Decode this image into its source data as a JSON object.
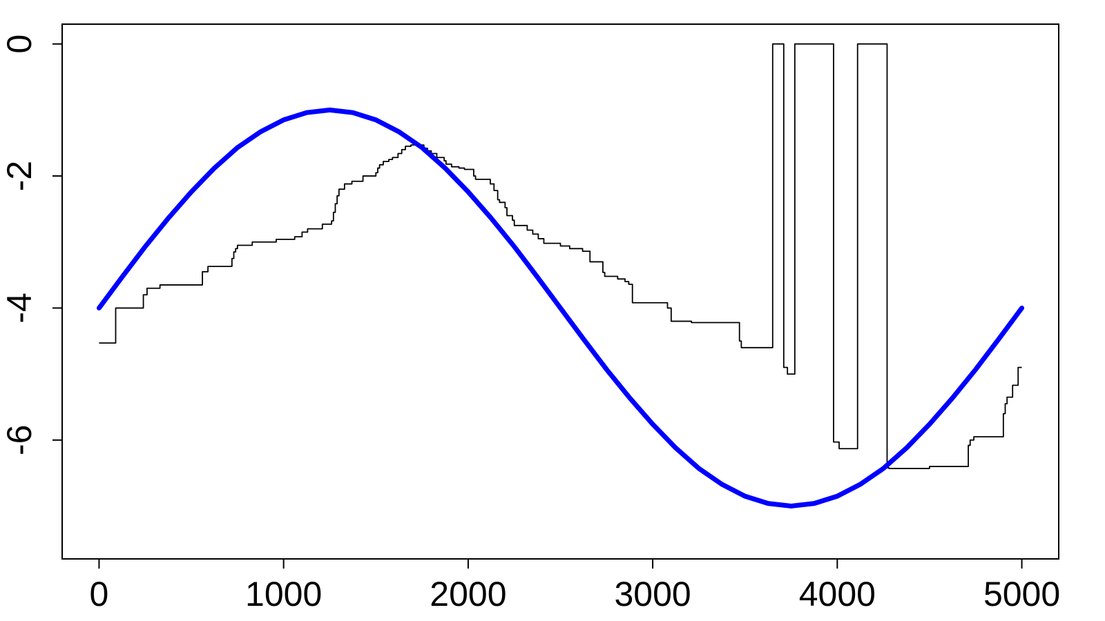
{
  "chart_data": {
    "type": "line",
    "title": "",
    "xlabel": "",
    "ylabel": "",
    "xlim": [
      -200,
      5200
    ],
    "ylim": [
      -7.8,
      0.3
    ],
    "xticks": [
      0,
      1000,
      2000,
      3000,
      4000,
      5000
    ],
    "yticks": [
      0,
      -2,
      -4,
      -6
    ],
    "grid": false,
    "series": [
      {
        "style": "step",
        "color": "#000000",
        "x": [
          0,
          90,
          90,
          240,
          240,
          260,
          260,
          330,
          330,
          560,
          560,
          590,
          590,
          720,
          720,
          730,
          730,
          740,
          740,
          750,
          750,
          830,
          830,
          960,
          960,
          1060,
          1060,
          1100,
          1100,
          1130,
          1130,
          1210,
          1210,
          1260,
          1260,
          1270,
          1270,
          1280,
          1280,
          1290,
          1290,
          1300,
          1300,
          1330,
          1330,
          1370,
          1370,
          1430,
          1430,
          1500,
          1500,
          1510,
          1510,
          1520,
          1520,
          1540,
          1540,
          1570,
          1570,
          1590,
          1590,
          1620,
          1620,
          1640,
          1640,
          1660,
          1660,
          1690,
          1690,
          1760,
          1760,
          1780,
          1780,
          1800,
          1800,
          1830,
          1830,
          1870,
          1870,
          1880,
          1880,
          1910,
          1910,
          1950,
          1950,
          1980,
          1980,
          2030,
          2030,
          2040,
          2040,
          2120,
          2120,
          2140,
          2140,
          2160,
          2160,
          2170,
          2170,
          2200,
          2200,
          2210,
          2210,
          2240,
          2240,
          2250,
          2250,
          2320,
          2320,
          2350,
          2350,
          2380,
          2380,
          2410,
          2410,
          2500,
          2500,
          2550,
          2550,
          2620,
          2620,
          2660,
          2660,
          2730,
          2730,
          2740,
          2740,
          2810,
          2810,
          2850,
          2850,
          2870,
          2870,
          2890,
          2890,
          3080,
          3080,
          3100,
          3100,
          3210,
          3210,
          3470,
          3470,
          3480,
          3480,
          3650,
          3650,
          3710,
          3710,
          3730,
          3730,
          3770,
          3770,
          3980,
          3980,
          4010,
          4010,
          4110,
          4110,
          4270,
          4270,
          4280,
          4280,
          4500,
          4500,
          4710,
          4710,
          4720,
          4720,
          4740,
          4740,
          4900,
          4900,
          4910,
          4910,
          4920,
          4920,
          4950,
          4950,
          4980,
          4980,
          5000
        ],
        "y": [
          -4.53,
          -4.53,
          -4.0,
          -4.0,
          -3.8,
          -3.8,
          -3.7,
          -3.7,
          -3.65,
          -3.65,
          -3.45,
          -3.45,
          -3.37,
          -3.37,
          -3.25,
          -3.25,
          -3.15,
          -3.15,
          -3.1,
          -3.1,
          -3.05,
          -3.05,
          -3.0,
          -3.0,
          -2.96,
          -2.96,
          -2.92,
          -2.92,
          -2.85,
          -2.85,
          -2.8,
          -2.8,
          -2.73,
          -2.73,
          -2.68,
          -2.68,
          -2.55,
          -2.55,
          -2.42,
          -2.42,
          -2.3,
          -2.3,
          -2.2,
          -2.2,
          -2.12,
          -2.12,
          -2.08,
          -2.08,
          -2.0,
          -2.0,
          -1.95,
          -1.95,
          -1.88,
          -1.88,
          -1.83,
          -1.83,
          -1.78,
          -1.78,
          -1.75,
          -1.75,
          -1.72,
          -1.72,
          -1.66,
          -1.66,
          -1.6,
          -1.6,
          -1.55,
          -1.55,
          -1.53,
          -1.53,
          -1.58,
          -1.58,
          -1.62,
          -1.62,
          -1.66,
          -1.66,
          -1.72,
          -1.72,
          -1.77,
          -1.77,
          -1.82,
          -1.82,
          -1.86,
          -1.86,
          -1.88,
          -1.88,
          -1.9,
          -1.9,
          -2.0,
          -2.0,
          -2.05,
          -2.05,
          -2.12,
          -2.12,
          -2.22,
          -2.22,
          -2.36,
          -2.36,
          -2.4,
          -2.4,
          -2.48,
          -2.48,
          -2.6,
          -2.6,
          -2.67,
          -2.67,
          -2.75,
          -2.75,
          -2.82,
          -2.82,
          -2.88,
          -2.88,
          -2.95,
          -2.95,
          -3.02,
          -3.02,
          -3.06,
          -3.06,
          -3.1,
          -3.1,
          -3.14,
          -3.14,
          -3.3,
          -3.3,
          -3.46,
          -3.46,
          -3.52,
          -3.52,
          -3.56,
          -3.56,
          -3.6,
          -3.6,
          -3.64,
          -3.64,
          -3.92,
          -3.92,
          -4.0,
          -4.0,
          -4.2,
          -4.2,
          -4.22,
          -4.22,
          -4.5,
          -4.5,
          -4.6,
          -4.6,
          0.0,
          0.0,
          -4.9,
          -4.9,
          -5.0,
          -5.0,
          0.0,
          0.0,
          -6.03,
          -6.03,
          -6.13,
          -6.13,
          0.0,
          0.0,
          -6.42,
          -6.42,
          -6.43,
          -6.43,
          -6.4,
          -6.4,
          -6.08,
          -6.08,
          -6.0,
          -6.0,
          -5.95,
          -5.95,
          -5.6,
          -5.6,
          -5.45,
          -5.45,
          -5.35,
          -5.35,
          -5.17,
          -5.17,
          -4.9,
          -4.9
        ]
      },
      {
        "style": "smooth",
        "color": "#0000ff",
        "x": [
          0,
          125,
          250,
          375,
          500,
          625,
          750,
          875,
          1000,
          1125,
          1250,
          1375,
          1500,
          1625,
          1750,
          1875,
          2000,
          2125,
          2250,
          2375,
          2500,
          2625,
          2750,
          2875,
          3000,
          3125,
          3250,
          3375,
          3500,
          3625,
          3750,
          3875,
          4000,
          4125,
          4250,
          4375,
          4500,
          4625,
          4750,
          4875,
          5000
        ],
        "y": [
          -4.0,
          -3.53,
          -3.07,
          -2.64,
          -2.24,
          -1.88,
          -1.57,
          -1.33,
          -1.15,
          -1.04,
          -1.0,
          -1.04,
          -1.15,
          -1.33,
          -1.57,
          -1.88,
          -2.24,
          -2.64,
          -3.07,
          -3.53,
          -4.0,
          -4.47,
          -4.93,
          -5.36,
          -5.76,
          -6.12,
          -6.43,
          -6.67,
          -6.85,
          -6.96,
          -7.0,
          -6.96,
          -6.85,
          -6.67,
          -6.43,
          -6.12,
          -5.76,
          -5.36,
          -4.93,
          -4.47,
          -4.0
        ]
      }
    ]
  }
}
